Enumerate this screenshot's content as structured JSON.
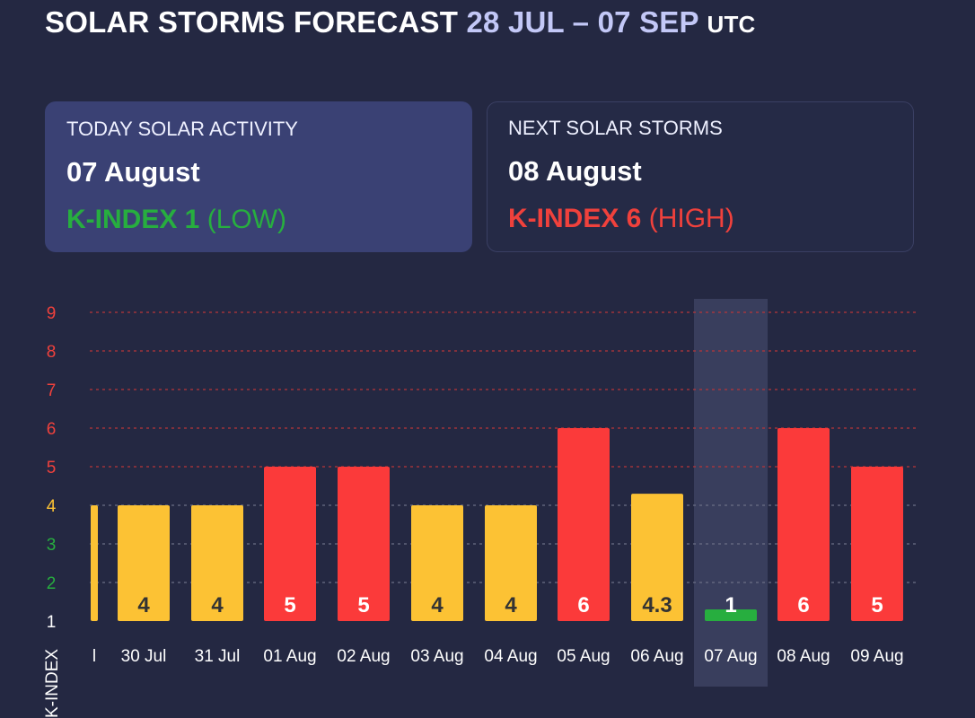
{
  "header": {
    "title": "SOLAR STORMS FORECAST",
    "range": "28 JUL – 07 SEP",
    "timezone": "UTC"
  },
  "cards": {
    "today": {
      "label": "TODAY SOLAR ACTIVITY",
      "date": "07 August",
      "kindex": "K-INDEX 1",
      "level": "(LOW)"
    },
    "next": {
      "label": "NEXT SOLAR STORMS",
      "date": "08 August",
      "kindex": "K-INDEX 6",
      "level": "(HIGH)"
    }
  },
  "colors": {
    "background": "#242842",
    "low": "#27ae3f",
    "moderate": "#fcc234",
    "high": "#fb3a3a",
    "highlight": "#3d4261"
  },
  "chart_data": {
    "type": "bar",
    "ylabel": "K-INDEX",
    "ylim": [
      1,
      9
    ],
    "yticks": [
      1,
      2,
      3,
      4,
      5,
      6,
      7,
      8,
      9
    ],
    "categories": [
      "l",
      "30 Jul",
      "31 Jul",
      "01 Aug",
      "02 Aug",
      "03 Aug",
      "04 Aug",
      "05 Aug",
      "06 Aug",
      "07 Aug",
      "08 Aug",
      "09 Aug"
    ],
    "values": [
      4,
      4,
      4,
      5,
      5,
      4,
      4,
      6,
      4.3,
      1,
      6,
      5
    ],
    "value_labels": [
      "",
      "4",
      "4",
      "5",
      "5",
      "4",
      "4",
      "6",
      "4.3",
      "1",
      "6",
      "5"
    ],
    "levels": [
      "moderate",
      "moderate",
      "moderate",
      "high",
      "high",
      "moderate",
      "moderate",
      "high",
      "moderate",
      "low",
      "high",
      "high"
    ],
    "highlighted": "07 Aug",
    "grid": true
  }
}
